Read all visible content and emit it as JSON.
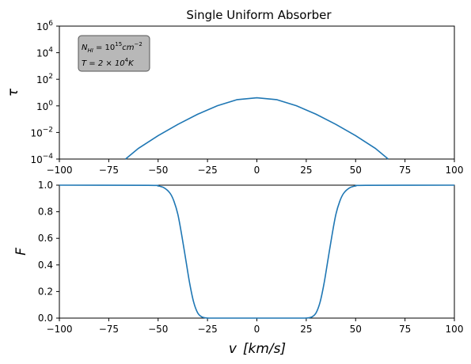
{
  "chart_data": [
    {
      "type": "line",
      "title": "Single Uniform Absorber",
      "ylabel": "τ",
      "xlabel": "",
      "xlim": [
        -100,
        100
      ],
      "ylim": [
        0.0001,
        1000000
      ],
      "yscale": "log",
      "x_ticks": [
        -100,
        -75,
        -50,
        -25,
        0,
        25,
        50,
        75,
        100
      ],
      "y_ticks": [
        {
          "base": "10",
          "exp": "−4",
          "value": 0.0001
        },
        {
          "base": "10",
          "exp": "−2",
          "value": 0.01
        },
        {
          "base": "10",
          "exp": "0",
          "value": 1
        },
        {
          "base": "10",
          "exp": "2",
          "value": 100
        },
        {
          "base": "10",
          "exp": "4",
          "value": 10000
        },
        {
          "base": "10",
          "exp": "6",
          "value": 1000000
        }
      ],
      "series_color": "#1f77b4",
      "series": [
        {
          "x": [
            -66.5,
            -60,
            -50,
            -40,
            -30,
            -20,
            -10,
            0,
            10,
            20,
            30,
            40,
            50,
            60,
            66.5
          ],
          "values": [
            0.0001,
            0.00063,
            0.00575,
            0.0407,
            0.234,
            1.02,
            2.95,
            4.07,
            2.95,
            1.02,
            0.234,
            0.0407,
            0.00575,
            0.00063,
            0.0001
          ]
        }
      ],
      "annotation": {
        "line1_prefix": "N",
        "line1_sub": "HI",
        "line1_mid": " = 10",
        "line1_sup": "15",
        "line1_unit": "cm",
        "line1_unit_sup": "−2",
        "line2_prefix": "T = 2 × 10",
        "line2_sup": "4",
        "line2_unit": "K",
        "box_color": "#b8b8b8",
        "placement": "top-left"
      }
    },
    {
      "type": "line",
      "title": "",
      "ylabel": "F",
      "xlabel_main": "v",
      "xlabel_unit": "[km/s]",
      "xlim": [
        -100,
        100
      ],
      "ylim": [
        0,
        1
      ],
      "x_ticks": [
        -100,
        -75,
        -50,
        -25,
        0,
        25,
        50,
        75,
        100
      ],
      "y_ticks": [
        0.0,
        0.2,
        0.4,
        0.6,
        0.8,
        1.0
      ],
      "series_color": "#1f77b4",
      "series": [
        {
          "x": [
            -100,
            -55,
            -50,
            -47,
            -44,
            -42,
            -40,
            -38,
            -36,
            -34,
            -32,
            -30,
            -28,
            -26,
            -24,
            -20,
            0,
            20,
            24,
            26,
            28,
            30,
            32,
            34,
            36,
            38,
            40,
            42,
            44,
            47,
            50,
            55,
            100
          ],
          "values": [
            1.0,
            0.999,
            0.994,
            0.98,
            0.94,
            0.88,
            0.78,
            0.62,
            0.44,
            0.26,
            0.12,
            0.04,
            0.01,
            0.002,
            0.0,
            0.0,
            0.0,
            0.0,
            0.0,
            0.002,
            0.01,
            0.04,
            0.12,
            0.26,
            0.44,
            0.62,
            0.78,
            0.88,
            0.94,
            0.98,
            0.994,
            0.999,
            1.0
          ]
        }
      ]
    }
  ]
}
